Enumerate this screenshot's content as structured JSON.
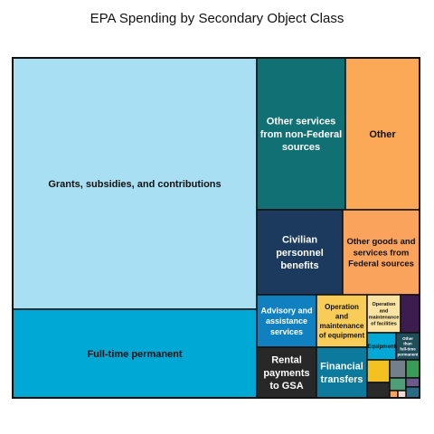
{
  "chart_data": {
    "type": "treemap",
    "title": "EPA Spending by Secondary Object Class",
    "cells": [
      {
        "label": "Grants, subsidies, and contributions",
        "value": 102,
        "color": "#a9dff2",
        "text_color": "#111111"
      },
      {
        "label": "Full-time permanent",
        "value": 38,
        "color": "#00a8d6",
        "text_color": "#111111"
      },
      {
        "label": "Other services from non-Federal sources",
        "value": 17.8,
        "color": "#117073",
        "text_color": "#ffffff"
      },
      {
        "label": "Other",
        "value": 16.4,
        "color": "#fba956",
        "text_color": "#111111"
      },
      {
        "label": "Civilian personnel benefits",
        "value": 9.8,
        "color": "#1b3a5e",
        "text_color": "#ffffff"
      },
      {
        "label": "Other goods and services from Federal sources",
        "value": 8.8,
        "color": "#f9a35c",
        "text_color": "#111111"
      },
      {
        "label": "Advisory and assistance services",
        "value": 4.4,
        "color": "#1180c0",
        "text_color": "#ffffff"
      },
      {
        "label": "Operation and maintenance of equipment",
        "value": 4.2,
        "color": "#f7cc57",
        "text_color": "#111111"
      },
      {
        "label": "Operation and maintenance of facilities",
        "value": 2.3,
        "color": "#fbe3a1",
        "text_color": "#111111"
      },
      {
        "label": "",
        "value": 1.0,
        "color": "#3d1d4f",
        "text_color": "#ffffff"
      },
      {
        "label": "Rental payments to GSA",
        "value": 4.0,
        "color": "#282828",
        "text_color": "#ffffff"
      },
      {
        "label": "Financial transfers",
        "value": 3.7,
        "color": "#0b7a9c",
        "text_color": "#ffffff"
      },
      {
        "label": "Equipment",
        "value": 1.2,
        "color": "#00a8d6",
        "text_color": "#111111"
      },
      {
        "label": "Other than full-time permanent",
        "value": 0.7,
        "color": "#1f4e5a",
        "text_color": "#ffffff"
      },
      {
        "label": "",
        "value": 0.8,
        "color": "#f3c220",
        "text_color": "#111111"
      },
      {
        "label": "",
        "value": 0.5,
        "color": "#73808c",
        "text_color": "#ffffff"
      },
      {
        "label": "",
        "value": 0.4,
        "color": "#3a9a57",
        "text_color": "#ffffff"
      },
      {
        "label": "",
        "value": 0.5,
        "color": "#2a2a2a",
        "text_color": "#ffffff"
      },
      {
        "label": "",
        "value": 0.3,
        "color": "#4e9e78",
        "text_color": "#ffffff"
      },
      {
        "label": "",
        "value": 0.15,
        "color": "#6d5a8c",
        "text_color": "#ffffff"
      },
      {
        "label": "",
        "value": 0.15,
        "color": "#2a6c84",
        "text_color": "#ffffff"
      },
      {
        "label": "",
        "value": 0.1,
        "color": "#f9a35c",
        "text_color": "#111111"
      },
      {
        "label": "",
        "value": 0.1,
        "color": "#f3d6d6",
        "text_color": "#111111"
      }
    ]
  }
}
